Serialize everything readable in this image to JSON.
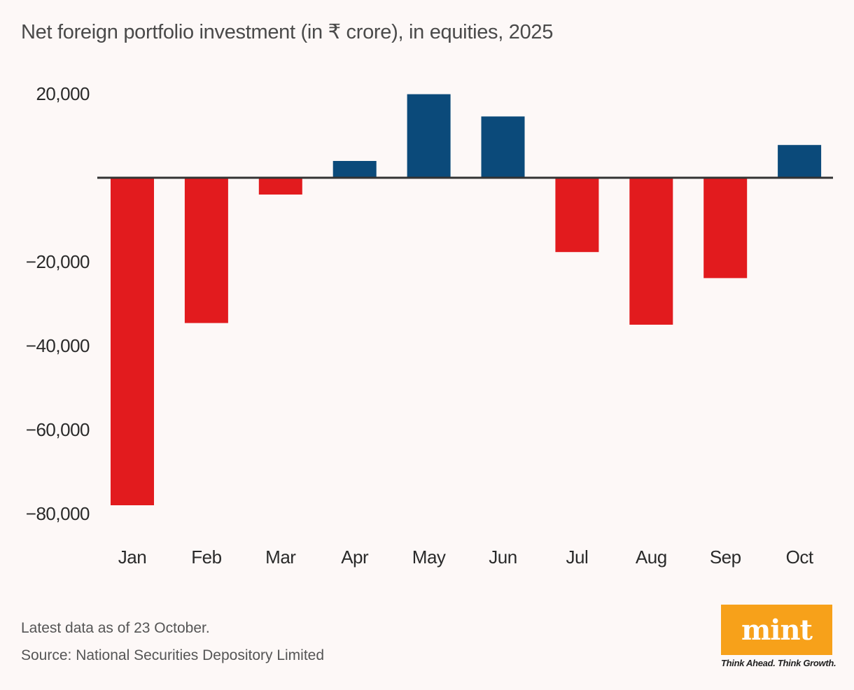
{
  "chart_data": {
    "type": "bar",
    "title": "Net foreign portfolio investment (in ₹ crore), in equities, 2025",
    "xlabel": "",
    "ylabel": "",
    "categories": [
      "Jan",
      "Feb",
      "Mar",
      "Apr",
      "May",
      "Jun",
      "Jul",
      "Aug",
      "Sep",
      "Oct"
    ],
    "values": [
      -78000,
      -34600,
      -4000,
      4000,
      19900,
      14600,
      -17700,
      -35000,
      -23900,
      7800
    ],
    "ylim": [
      -85000,
      22000
    ],
    "yticks": [
      20000,
      -20000,
      -40000,
      -60000,
      -80000
    ],
    "ytick_labels": [
      "20,000",
      "−20,000",
      "−40,000",
      "−60,000",
      "−80,000"
    ],
    "grid": false,
    "legend": "none",
    "colors": {
      "positive": "#0B4A7A",
      "negative": "#E21B1E",
      "zero_line": "#333333"
    }
  },
  "footer": {
    "note": "Latest data as of 23 October.",
    "source": "Source: National Securities Depository Limited"
  },
  "logo": {
    "wordmark": "mint",
    "tagline": "Think Ahead. Think Growth.",
    "color": "#F7A11A"
  }
}
